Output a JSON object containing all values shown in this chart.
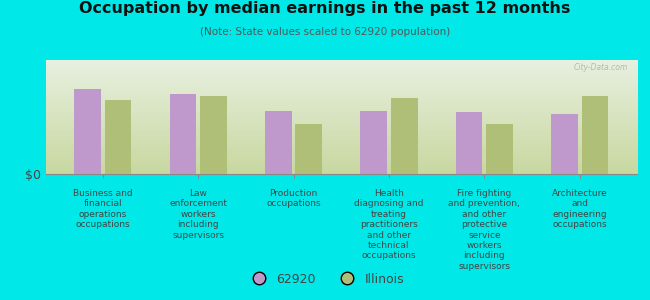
{
  "title": "Occupation by median earnings in the past 12 months",
  "subtitle": "(Note: State values scaled to 62920 population)",
  "background_color": "#00e8e8",
  "plot_bg_bottom": "#c8d8a0",
  "plot_bg_top": "#e8f0e0",
  "categories": [
    "Business and\nfinancial\noperations\noccupations",
    "Law\nenforcement\nworkers\nincluding\nsupervisors",
    "Production\noccupations",
    "Health\ndiagnosing and\ntreating\npractitioners\nand other\ntechnical\noccupations",
    "Fire fighting\nand prevention,\nand other\nprotective\nservice\nworkers\nincluding\nsupervisors",
    "Architecture\nand\nengineering\noccupations"
  ],
  "values_62920": [
    0.78,
    0.74,
    0.58,
    0.58,
    0.57,
    0.55
  ],
  "values_illinois": [
    0.68,
    0.72,
    0.46,
    0.7,
    0.46,
    0.72
  ],
  "color_62920": "#bf99cc",
  "color_illinois": "#b0bf78",
  "legend_62920": "62920",
  "legend_illinois": "Illinois",
  "ylabel": "$0",
  "watermark": "City-Data.com"
}
